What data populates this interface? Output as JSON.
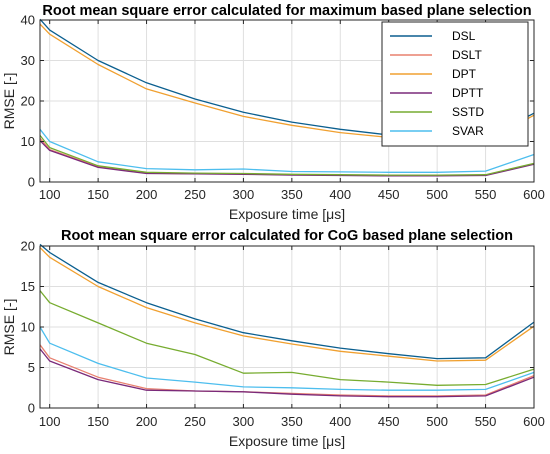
{
  "chart_data": [
    {
      "type": "line",
      "title": "Root mean square error calculated for maximum based plane selection",
      "xlabel": "Exposure time [μs]",
      "ylabel": "RMSE [-]",
      "xlim": [
        90,
        600
      ],
      "ylim": [
        0,
        40
      ],
      "xticks": [
        100,
        150,
        200,
        250,
        300,
        350,
        400,
        450,
        500,
        550,
        600
      ],
      "yticks": [
        0,
        10,
        20,
        30,
        40
      ],
      "grid": true,
      "legend": "top-right",
      "x": [
        90,
        100,
        150,
        200,
        250,
        300,
        350,
        400,
        450,
        500,
        550,
        600
      ],
      "series": [
        {
          "name": "DSL",
          "color": "#0b5f8f",
          "values": [
            40.2,
            37.5,
            30.0,
            24.5,
            20.5,
            17.2,
            14.8,
            13.0,
            11.6,
            10.5,
            10.8,
            17.0
          ]
        },
        {
          "name": "DSLT",
          "color": "#e8806f",
          "values": [
            10.8,
            8.0,
            3.8,
            2.2,
            2.0,
            2.0,
            1.8,
            1.7,
            1.6,
            1.6,
            1.7,
            4.5
          ]
        },
        {
          "name": "DPT",
          "color": "#f0a030",
          "values": [
            39.0,
            36.5,
            29.0,
            23.0,
            19.5,
            16.2,
            14.0,
            12.2,
            11.0,
            9.8,
            9.9,
            16.5
          ]
        },
        {
          "name": "DPTT",
          "color": "#7a2a7a",
          "values": [
            10.2,
            7.8,
            3.6,
            2.1,
            2.0,
            1.9,
            1.7,
            1.6,
            1.5,
            1.5,
            1.6,
            4.4
          ]
        },
        {
          "name": "SSTD",
          "color": "#77ac30",
          "values": [
            11.5,
            8.5,
            4.0,
            2.4,
            2.2,
            2.1,
            1.9,
            1.8,
            1.7,
            1.7,
            1.8,
            4.6
          ]
        },
        {
          "name": "SVAR",
          "color": "#4dbeee",
          "values": [
            13.0,
            10.0,
            5.0,
            3.3,
            3.0,
            3.2,
            2.6,
            2.5,
            2.4,
            2.4,
            2.7,
            6.8
          ]
        }
      ]
    },
    {
      "type": "line",
      "title": "Root mean square error calculated for CoG based plane selection",
      "xlabel": "Exposure time [μs]",
      "ylabel": "RMSE [-]",
      "xlim": [
        90,
        600
      ],
      "ylim": [
        0,
        20
      ],
      "xticks": [
        100,
        150,
        200,
        250,
        300,
        350,
        400,
        450,
        500,
        550,
        600
      ],
      "yticks": [
        0,
        5,
        10,
        15,
        20
      ],
      "grid": true,
      "x": [
        90,
        100,
        150,
        200,
        250,
        300,
        350,
        400,
        450,
        500,
        550,
        600
      ],
      "series": [
        {
          "name": "DSL",
          "color": "#0b5f8f",
          "values": [
            20.2,
            19.2,
            15.5,
            13.0,
            11.0,
            9.3,
            8.3,
            7.4,
            6.7,
            6.1,
            6.2,
            10.6
          ]
        },
        {
          "name": "DSLT",
          "color": "#e8806f",
          "values": [
            7.8,
            6.2,
            3.8,
            2.4,
            2.1,
            2.0,
            1.8,
            1.6,
            1.5,
            1.5,
            1.6,
            4.0
          ]
        },
        {
          "name": "DPT",
          "color": "#f0a030",
          "values": [
            19.8,
            18.6,
            15.0,
            12.4,
            10.5,
            8.9,
            7.9,
            7.0,
            6.4,
            5.8,
            5.9,
            10.1
          ]
        },
        {
          "name": "DPTT",
          "color": "#7a2a7a",
          "values": [
            7.3,
            5.8,
            3.5,
            2.2,
            2.1,
            2.0,
            1.7,
            1.5,
            1.4,
            1.4,
            1.5,
            3.8
          ]
        },
        {
          "name": "SSTD",
          "color": "#77ac30",
          "values": [
            14.5,
            13.0,
            10.5,
            8.0,
            6.6,
            4.3,
            4.4,
            3.5,
            3.2,
            2.8,
            2.9,
            4.8
          ]
        },
        {
          "name": "SVAR",
          "color": "#4dbeee",
          "values": [
            10.0,
            8.0,
            5.5,
            3.7,
            3.2,
            2.6,
            2.5,
            2.3,
            2.2,
            2.2,
            2.3,
            4.4
          ]
        }
      ]
    }
  ]
}
